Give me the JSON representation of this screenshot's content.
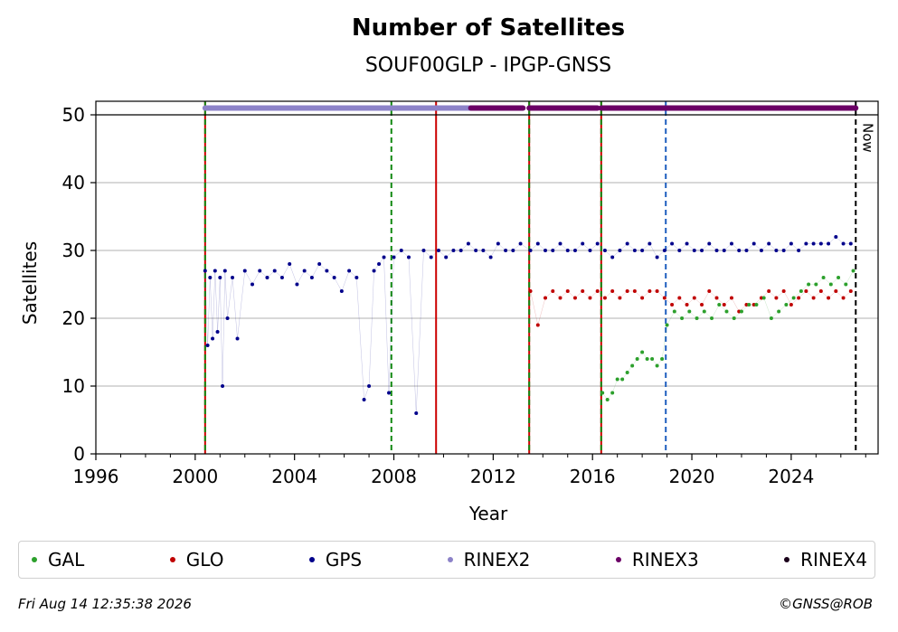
{
  "title": "Number of Satellites",
  "subtitle": "SOUF00GLP - IPGP-GNSS",
  "footer_timestamp": "Fri Aug 14 12:35:38 2026",
  "footer_credit": "©GNSS@ROB",
  "chart_data": {
    "type": "scatter",
    "xlabel": "Year",
    "ylabel": "Satellites",
    "xlim": [
      1996,
      2027.5
    ],
    "ylim": [
      0,
      52
    ],
    "x_ticks": [
      1996,
      2000,
      2004,
      2008,
      2012,
      2016,
      2020,
      2024
    ],
    "y_ticks": [
      0,
      10,
      20,
      30,
      40,
      50
    ],
    "grid": "horizontal",
    "now_year": 2026.6,
    "now_label": "Now",
    "legend_position": "bottom",
    "colors": {
      "GAL": "#2ca02c",
      "GLO": "#c00000",
      "GPS": "#00008b",
      "RINEX2": "#8c82c8",
      "RINEX3": "#6b0066",
      "RINEX4": "#1a001a"
    },
    "vertical_events": [
      {
        "year": 2000.4,
        "color": "#cc0000",
        "style": "solid"
      },
      {
        "year": 2000.4,
        "color": "#118811",
        "style": "dashed"
      },
      {
        "year": 2007.9,
        "color": "#118811",
        "style": "dashed"
      },
      {
        "year": 2009.7,
        "color": "#cc0000",
        "style": "solid"
      },
      {
        "year": 2013.45,
        "color": "#cc0000",
        "style": "solid"
      },
      {
        "year": 2013.45,
        "color": "#118811",
        "style": "dashed"
      },
      {
        "year": 2016.35,
        "color": "#cc0000",
        "style": "solid"
      },
      {
        "year": 2016.35,
        "color": "#118811",
        "style": "dashed"
      },
      {
        "year": 2018.95,
        "color": "#1f5fbf",
        "style": "dashed"
      }
    ],
    "rinex_bands": [
      {
        "name": "RINEX2",
        "y": 51,
        "start": 2000.4,
        "end": 2011.1
      },
      {
        "name": "RINEX3",
        "y": 51,
        "start": 2011.1,
        "end": 2013.2
      },
      {
        "name": "RINEX3",
        "y": 51,
        "start": 2013.45,
        "end": 2016.2
      },
      {
        "name": "RINEX3",
        "y": 51,
        "start": 2016.35,
        "end": 2026.6
      }
    ],
    "series": [
      {
        "name": "GPS",
        "x": [
          2000.4,
          2000.5,
          2000.6,
          2000.7,
          2000.8,
          2000.9,
          2001.0,
          2001.1,
          2001.2,
          2001.3,
          2001.5,
          2001.7,
          2002.0,
          2002.3,
          2002.6,
          2002.9,
          2003.2,
          2003.5,
          2003.8,
          2004.1,
          2004.4,
          2004.7,
          2005.0,
          2005.3,
          2005.6,
          2005.9,
          2006.2,
          2006.5,
          2006.8,
          2007.0,
          2007.2,
          2007.4,
          2007.6,
          2007.8,
          2008.0,
          2008.3,
          2008.6,
          2008.9,
          2009.2,
          2009.5,
          2009.8,
          2010.1,
          2010.4,
          2010.7,
          2011.0,
          2011.3,
          2011.6,
          2011.9,
          2012.2,
          2012.5,
          2012.8,
          2013.1,
          2013.5,
          2013.8,
          2014.1,
          2014.4,
          2014.7,
          2015.0,
          2015.3,
          2015.6,
          2015.9,
          2016.2,
          2016.5,
          2016.8,
          2017.1,
          2017.4,
          2017.7,
          2018.0,
          2018.3,
          2018.6,
          2018.9,
          2019.2,
          2019.5,
          2019.8,
          2020.1,
          2020.4,
          2020.7,
          2021.0,
          2021.3,
          2021.6,
          2021.9,
          2022.2,
          2022.5,
          2022.8,
          2023.1,
          2023.4,
          2023.7,
          2024.0,
          2024.3,
          2024.6,
          2024.9,
          2025.2,
          2025.5,
          2025.8,
          2026.1,
          2026.4
        ],
        "values": [
          27,
          16,
          26,
          17,
          27,
          18,
          26,
          10,
          27,
          20,
          26,
          17,
          27,
          25,
          27,
          26,
          27,
          26,
          28,
          25,
          27,
          26,
          28,
          27,
          26,
          24,
          27,
          26,
          8,
          10,
          27,
          28,
          29,
          9,
          29,
          30,
          29,
          6,
          30,
          29,
          30,
          29,
          30,
          30,
          31,
          30,
          30,
          29,
          31,
          30,
          30,
          31,
          30,
          31,
          30,
          30,
          31,
          30,
          30,
          31,
          30,
          31,
          30,
          29,
          30,
          31,
          30,
          30,
          31,
          29,
          30,
          31,
          30,
          31,
          30,
          30,
          31,
          30,
          30,
          31,
          30,
          30,
          31,
          30,
          31,
          30,
          30,
          31,
          30,
          31,
          31,
          31,
          31,
          32,
          31,
          31
        ]
      },
      {
        "name": "GLO",
        "x": [
          2013.5,
          2013.8,
          2014.1,
          2014.4,
          2014.7,
          2015.0,
          2015.3,
          2015.6,
          2015.9,
          2016.2,
          2016.5,
          2016.8,
          2017.1,
          2017.4,
          2017.7,
          2018.0,
          2018.3,
          2018.6,
          2018.9,
          2019.2,
          2019.5,
          2019.8,
          2020.1,
          2020.4,
          2020.7,
          2021.0,
          2021.3,
          2021.6,
          2021.9,
          2022.2,
          2022.5,
          2022.8,
          2023.1,
          2023.4,
          2023.7,
          2024.0,
          2024.3,
          2024.6,
          2024.9,
          2025.2,
          2025.5,
          2025.8,
          2026.1,
          2026.4
        ],
        "values": [
          24,
          19,
          23,
          24,
          23,
          24,
          23,
          24,
          23,
          24,
          23,
          24,
          23,
          24,
          24,
          23,
          24,
          24,
          23,
          22,
          23,
          22,
          23,
          22,
          24,
          23,
          22,
          23,
          21,
          22,
          22,
          23,
          24,
          23,
          24,
          22,
          23,
          24,
          23,
          24,
          23,
          24,
          23,
          24
        ]
      },
      {
        "name": "GAL",
        "x": [
          2016.4,
          2016.6,
          2016.8,
          2017.0,
          2017.2,
          2017.4,
          2017.6,
          2017.8,
          2018.0,
          2018.2,
          2018.4,
          2018.6,
          2018.8,
          2019.0,
          2019.3,
          2019.6,
          2019.9,
          2020.2,
          2020.5,
          2020.8,
          2021.1,
          2021.4,
          2021.7,
          2022.0,
          2022.3,
          2022.6,
          2022.9,
          2023.2,
          2023.5,
          2023.8,
          2024.1,
          2024.4,
          2024.7,
          2025.0,
          2025.3,
          2025.6,
          2025.9,
          2026.2,
          2026.5
        ],
        "values": [
          9,
          8,
          9,
          11,
          11,
          12,
          13,
          14,
          15,
          14,
          14,
          13,
          14,
          19,
          21,
          20,
          21,
          20,
          21,
          20,
          22,
          21,
          20,
          21,
          22,
          22,
          23,
          20,
          21,
          22,
          23,
          24,
          25,
          25,
          26,
          25,
          26,
          25,
          27
        ]
      }
    ]
  }
}
